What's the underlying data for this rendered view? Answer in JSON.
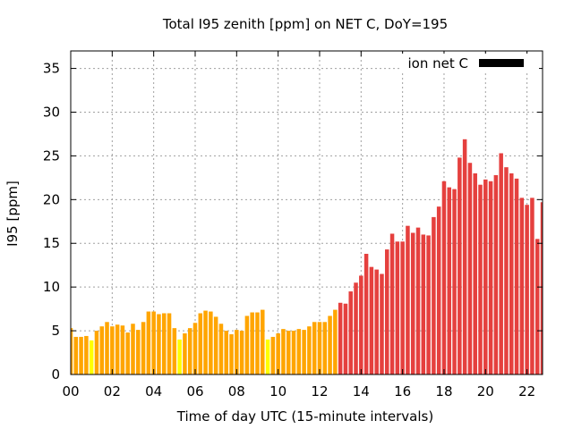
{
  "chart_data": {
    "type": "bar",
    "title": "Total I95 zenith [ppm] on NET C, DoY=195",
    "xlabel": "Time of day UTC (15-minute intervals)",
    "ylabel": "I95 [ppm]",
    "xlim": [
      0,
      22.75
    ],
    "ylim": [
      0,
      37
    ],
    "yticks": [
      0,
      5,
      10,
      15,
      20,
      25,
      30,
      35
    ],
    "xticks": [
      0,
      2,
      4,
      6,
      8,
      10,
      12,
      14,
      16,
      18,
      20,
      22
    ],
    "xtick_labels": [
      "00",
      "02",
      "04",
      "06",
      "08",
      "10",
      "12",
      "14",
      "16",
      "18",
      "20",
      "22"
    ],
    "grid": true,
    "legend": {
      "position": "top-right",
      "entries": [
        {
          "name": "ion net C",
          "color": "#000000"
        }
      ]
    },
    "bar_colors": {
      "yellow": "#ffff00",
      "orange": "#ffa500",
      "red": "#e5403e"
    },
    "bars": [
      {
        "x": 0.0,
        "value": 5.3,
        "color": "orange"
      },
      {
        "x": 0.25,
        "value": 4.3,
        "color": "orange"
      },
      {
        "x": 0.5,
        "value": 4.3,
        "color": "orange"
      },
      {
        "x": 0.75,
        "value": 4.4,
        "color": "orange"
      },
      {
        "x": 1.0,
        "value": 3.9,
        "color": "yellow"
      },
      {
        "x": 1.25,
        "value": 5.0,
        "color": "orange"
      },
      {
        "x": 1.5,
        "value": 5.5,
        "color": "orange"
      },
      {
        "x": 1.75,
        "value": 6.0,
        "color": "orange"
      },
      {
        "x": 2.0,
        "value": 5.5,
        "color": "orange"
      },
      {
        "x": 2.25,
        "value": 5.7,
        "color": "orange"
      },
      {
        "x": 2.5,
        "value": 5.6,
        "color": "orange"
      },
      {
        "x": 2.75,
        "value": 4.8,
        "color": "orange"
      },
      {
        "x": 3.0,
        "value": 5.8,
        "color": "orange"
      },
      {
        "x": 3.25,
        "value": 5.1,
        "color": "orange"
      },
      {
        "x": 3.5,
        "value": 6.0,
        "color": "orange"
      },
      {
        "x": 3.75,
        "value": 7.2,
        "color": "orange"
      },
      {
        "x": 4.0,
        "value": 7.2,
        "color": "orange"
      },
      {
        "x": 4.25,
        "value": 6.9,
        "color": "orange"
      },
      {
        "x": 4.5,
        "value": 7.0,
        "color": "orange"
      },
      {
        "x": 4.75,
        "value": 7.0,
        "color": "orange"
      },
      {
        "x": 5.0,
        "value": 5.3,
        "color": "orange"
      },
      {
        "x": 5.25,
        "value": 4.0,
        "color": "yellow"
      },
      {
        "x": 5.5,
        "value": 4.7,
        "color": "orange"
      },
      {
        "x": 5.75,
        "value": 5.3,
        "color": "orange"
      },
      {
        "x": 6.0,
        "value": 5.9,
        "color": "orange"
      },
      {
        "x": 6.25,
        "value": 7.0,
        "color": "orange"
      },
      {
        "x": 6.5,
        "value": 7.3,
        "color": "orange"
      },
      {
        "x": 6.75,
        "value": 7.2,
        "color": "orange"
      },
      {
        "x": 7.0,
        "value": 6.6,
        "color": "orange"
      },
      {
        "x": 7.25,
        "value": 5.8,
        "color": "orange"
      },
      {
        "x": 7.5,
        "value": 5.0,
        "color": "orange"
      },
      {
        "x": 7.75,
        "value": 4.6,
        "color": "orange"
      },
      {
        "x": 8.0,
        "value": 5.1,
        "color": "orange"
      },
      {
        "x": 8.25,
        "value": 5.0,
        "color": "orange"
      },
      {
        "x": 8.5,
        "value": 6.7,
        "color": "orange"
      },
      {
        "x": 8.75,
        "value": 7.1,
        "color": "orange"
      },
      {
        "x": 9.0,
        "value": 7.1,
        "color": "orange"
      },
      {
        "x": 9.25,
        "value": 7.4,
        "color": "orange"
      },
      {
        "x": 9.5,
        "value": 4.0,
        "color": "yellow"
      },
      {
        "x": 9.75,
        "value": 4.3,
        "color": "orange"
      },
      {
        "x": 10.0,
        "value": 4.7,
        "color": "orange"
      },
      {
        "x": 10.25,
        "value": 5.2,
        "color": "orange"
      },
      {
        "x": 10.5,
        "value": 5.0,
        "color": "orange"
      },
      {
        "x": 10.75,
        "value": 5.0,
        "color": "orange"
      },
      {
        "x": 11.0,
        "value": 5.2,
        "color": "orange"
      },
      {
        "x": 11.25,
        "value": 5.1,
        "color": "orange"
      },
      {
        "x": 11.5,
        "value": 5.5,
        "color": "orange"
      },
      {
        "x": 11.75,
        "value": 6.0,
        "color": "orange"
      },
      {
        "x": 12.0,
        "value": 6.0,
        "color": "orange"
      },
      {
        "x": 12.25,
        "value": 6.0,
        "color": "orange"
      },
      {
        "x": 12.5,
        "value": 6.7,
        "color": "orange"
      },
      {
        "x": 12.75,
        "value": 7.4,
        "color": "orange"
      },
      {
        "x": 13.0,
        "value": 8.2,
        "color": "red"
      },
      {
        "x": 13.25,
        "value": 8.1,
        "color": "red"
      },
      {
        "x": 13.5,
        "value": 9.5,
        "color": "red"
      },
      {
        "x": 13.75,
        "value": 10.5,
        "color": "red"
      },
      {
        "x": 14.0,
        "value": 11.3,
        "color": "red"
      },
      {
        "x": 14.25,
        "value": 13.8,
        "color": "red"
      },
      {
        "x": 14.5,
        "value": 12.3,
        "color": "red"
      },
      {
        "x": 14.75,
        "value": 12.0,
        "color": "red"
      },
      {
        "x": 15.0,
        "value": 11.5,
        "color": "red"
      },
      {
        "x": 15.25,
        "value": 14.3,
        "color": "red"
      },
      {
        "x": 15.5,
        "value": 16.1,
        "color": "red"
      },
      {
        "x": 15.75,
        "value": 15.2,
        "color": "red"
      },
      {
        "x": 16.0,
        "value": 15.2,
        "color": "red"
      },
      {
        "x": 16.25,
        "value": 17.0,
        "color": "red"
      },
      {
        "x": 16.5,
        "value": 16.2,
        "color": "red"
      },
      {
        "x": 16.75,
        "value": 16.8,
        "color": "red"
      },
      {
        "x": 17.0,
        "value": 16.0,
        "color": "red"
      },
      {
        "x": 17.25,
        "value": 15.9,
        "color": "red"
      },
      {
        "x": 17.5,
        "value": 18.0,
        "color": "red"
      },
      {
        "x": 17.75,
        "value": 19.2,
        "color": "red"
      },
      {
        "x": 18.0,
        "value": 22.1,
        "color": "red"
      },
      {
        "x": 18.25,
        "value": 21.4,
        "color": "red"
      },
      {
        "x": 18.5,
        "value": 21.2,
        "color": "red"
      },
      {
        "x": 18.75,
        "value": 24.8,
        "color": "red"
      },
      {
        "x": 19.0,
        "value": 26.9,
        "color": "red"
      },
      {
        "x": 19.25,
        "value": 24.2,
        "color": "red"
      },
      {
        "x": 19.5,
        "value": 23.0,
        "color": "red"
      },
      {
        "x": 19.75,
        "value": 21.7,
        "color": "red"
      },
      {
        "x": 20.0,
        "value": 22.3,
        "color": "red"
      },
      {
        "x": 20.25,
        "value": 22.1,
        "color": "red"
      },
      {
        "x": 20.5,
        "value": 22.8,
        "color": "red"
      },
      {
        "x": 20.75,
        "value": 25.3,
        "color": "red"
      },
      {
        "x": 21.0,
        "value": 23.7,
        "color": "red"
      },
      {
        "x": 21.25,
        "value": 23.0,
        "color": "red"
      },
      {
        "x": 21.5,
        "value": 22.4,
        "color": "red"
      },
      {
        "x": 21.75,
        "value": 20.2,
        "color": "red"
      },
      {
        "x": 22.0,
        "value": 19.4,
        "color": "red"
      },
      {
        "x": 22.25,
        "value": 20.2,
        "color": "red"
      },
      {
        "x": 22.5,
        "value": 15.5,
        "color": "red"
      },
      {
        "x": 22.75,
        "value": 19.7,
        "color": "red"
      }
    ]
  }
}
